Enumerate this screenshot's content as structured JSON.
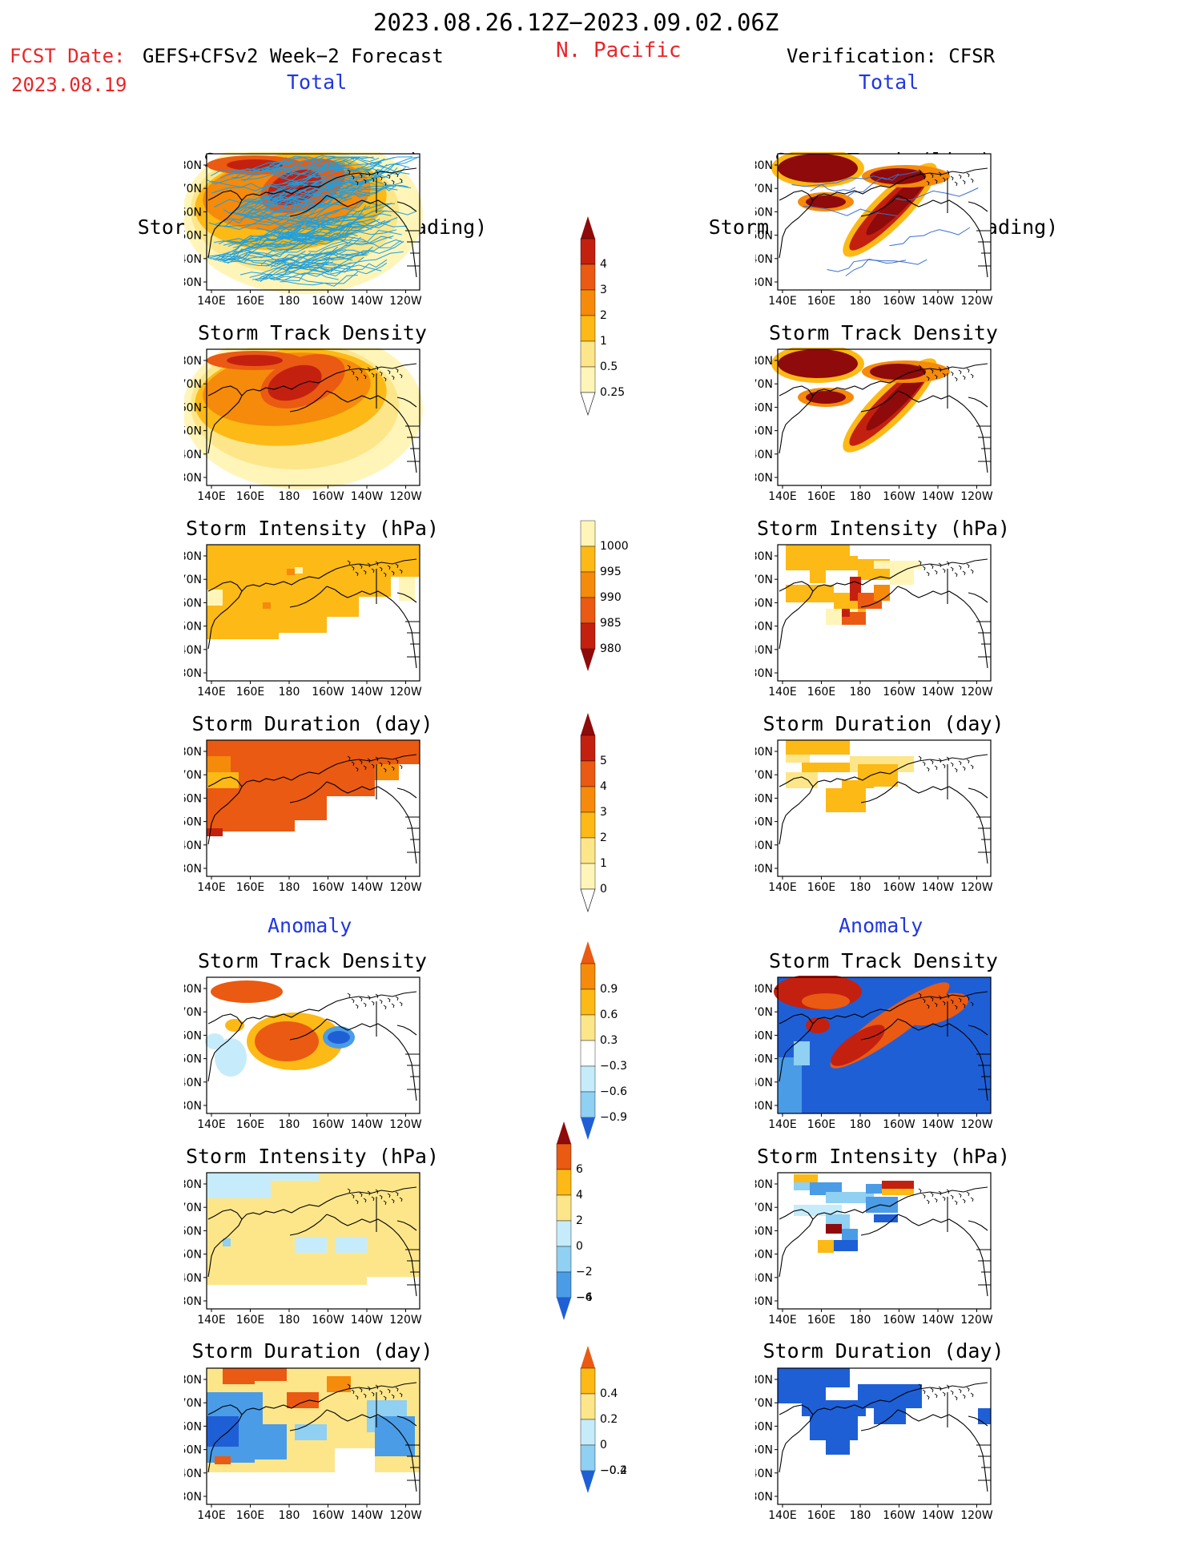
{
  "header": {
    "period": "2023.08.26.12Z−2023.09.02.06Z",
    "fcst_date_label": "FCST Date:",
    "fcst_model": "GEFS+CFSv2 Week−2 Forecast",
    "fcst_date": "2023.08.19",
    "region": "N. Pacific",
    "verification": "Verification: CFSR",
    "total_left": "Total",
    "total_right": "Total",
    "anomaly_left": "Anomaly",
    "anomaly_right": "Anomaly"
  },
  "axes": {
    "lat_labels": [
      "80N",
      "70N",
      "60N",
      "50N",
      "40N",
      "30N"
    ],
    "lon_labels": [
      "140E",
      "160E",
      "180",
      "160W",
      "140W",
      "120W"
    ]
  },
  "panel_titles": {
    "track_line": "Storm Track (line)",
    "track_density_shading": "Storm Track Density (shading)",
    "track_density": "Storm Track Density",
    "intensity": "Storm Intensity (hPa)",
    "duration": "Storm Duration (day)"
  },
  "colors": {
    "c1": "#fff5b8",
    "c2": "#fde68a",
    "c3": "#fdb915",
    "c4": "#f58a0b",
    "c5": "#ea5a12",
    "c6": "#c42010",
    "c7": "#8f0a0a",
    "b1": "#c6ecfb",
    "b2": "#8fd0f3",
    "b3": "#4a9ce6",
    "b4": "#1f5fd6",
    "track": "#1e9fdf",
    "track_obs": "#3a6fd0"
  },
  "colorbars": [
    {
      "name": "total-density-colorbar",
      "labels": [
        "4",
        "3",
        "2",
        "1",
        "0.5",
        "0.25"
      ]
    },
    {
      "name": "total-intensity-colorbar",
      "labels": [
        "1000",
        "995",
        "990",
        "985",
        "980"
      ]
    },
    {
      "name": "total-duration-colorbar",
      "labels": [
        "5",
        "4",
        "3",
        "2",
        "1",
        "0"
      ]
    },
    {
      "name": "anomaly-density-colorbar",
      "labels": [
        "0.9",
        "0.6",
        "0.3",
        "−0.3",
        "−0.6",
        "−0.9"
      ]
    },
    {
      "name": "anomaly-intensity-colorbar",
      "labels": [
        "6",
        "4",
        "2",
        "0",
        "−2",
        "−4",
        "−6"
      ]
    },
    {
      "name": "anomaly-duration-colorbar",
      "labels": [
        "0.4",
        "0.2",
        "0",
        "−0.2",
        "−0.4"
      ]
    }
  ],
  "chart_data": [
    {
      "type": "heatmap",
      "panel": "forecast-total-track",
      "title": "Storm Track (line) / Storm Track Density (shading)",
      "scale": [
        0.25,
        0.5,
        1,
        2,
        3,
        4
      ]
    },
    {
      "type": "heatmap",
      "panel": "verification-total-track",
      "title": "Storm Track (line) / Storm Track Density (shading)",
      "scale": [
        0.25,
        0.5,
        1,
        2,
        3,
        4
      ]
    },
    {
      "type": "heatmap",
      "panel": "forecast-total-density",
      "title": "Storm Track Density",
      "scale": [
        0.25,
        0.5,
        1,
        2,
        3,
        4
      ]
    },
    {
      "type": "heatmap",
      "panel": "verification-total-density",
      "title": "Storm Track Density",
      "scale": [
        0.25,
        0.5,
        1,
        2,
        3,
        4
      ]
    },
    {
      "type": "heatmap",
      "panel": "forecast-total-intensity",
      "title": "Storm Intensity (hPa)",
      "scale": [
        980,
        985,
        990,
        995,
        1000
      ]
    },
    {
      "type": "heatmap",
      "panel": "verification-total-intensity",
      "title": "Storm Intensity (hPa)",
      "scale": [
        980,
        985,
        990,
        995,
        1000
      ]
    },
    {
      "type": "heatmap",
      "panel": "forecast-total-duration",
      "title": "Storm Duration (day)",
      "scale": [
        0,
        1,
        2,
        3,
        4,
        5
      ]
    },
    {
      "type": "heatmap",
      "panel": "verification-total-duration",
      "title": "Storm Duration (day)",
      "scale": [
        0,
        1,
        2,
        3,
        4,
        5
      ]
    },
    {
      "type": "heatmap",
      "panel": "forecast-anomaly-density",
      "title": "Storm Track Density",
      "scale": [
        -0.9,
        -0.6,
        -0.3,
        0.3,
        0.6,
        0.9
      ]
    },
    {
      "type": "heatmap",
      "panel": "verification-anomaly-density",
      "title": "Storm Track Density",
      "scale": [
        -0.9,
        -0.6,
        -0.3,
        0.3,
        0.6,
        0.9
      ]
    },
    {
      "type": "heatmap",
      "panel": "forecast-anomaly-intensity",
      "title": "Storm Intensity (hPa)",
      "scale": [
        -6,
        -4,
        -2,
        0,
        2,
        4,
        6
      ]
    },
    {
      "type": "heatmap",
      "panel": "verification-anomaly-intensity",
      "title": "Storm Intensity (hPa)",
      "scale": [
        -6,
        -4,
        -2,
        0,
        2,
        4,
        6
      ]
    },
    {
      "type": "heatmap",
      "panel": "forecast-anomaly-duration",
      "title": "Storm Duration (day)",
      "scale": [
        -0.4,
        -0.2,
        0,
        0.2,
        0.4
      ]
    },
    {
      "type": "heatmap",
      "panel": "verification-anomaly-duration",
      "title": "Storm Duration (day)",
      "scale": [
        -0.4,
        -0.2,
        0,
        0.2,
        0.4
      ]
    }
  ]
}
